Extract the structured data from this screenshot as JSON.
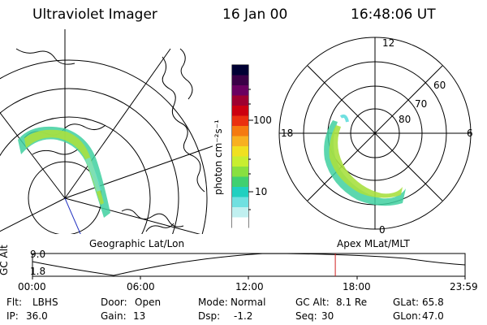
{
  "header": {
    "instrument": "Ultraviolet Imager",
    "date": "16 Jan 00",
    "time": "16:48:06 UT"
  },
  "colorbar": {
    "unit_label": "photon cm⁻²s⁻¹",
    "tick_100": "100",
    "tick_10": "10",
    "colors": [
      "#000033",
      "#3a0046",
      "#6a0060",
      "#9e0030",
      "#cc0010",
      "#ea3010",
      "#f57a10",
      "#f8b020",
      "#f0e020",
      "#c8ee30",
      "#88e040",
      "#40d070",
      "#20d0c0",
      "#70e0e0",
      "#c0f0f0",
      "#ffffff"
    ]
  },
  "geo_panel": {
    "label": "Geographic Lat/Lon"
  },
  "mag_panel": {
    "label": "Apex MLat/MLT",
    "mlt_12": "12",
    "mlt_18": "18",
    "mlt_6": "6",
    "mlt_0": "0",
    "lat_60": "60",
    "lat_70": "70",
    "lat_80": "80"
  },
  "timeline": {
    "axis_label": "GC Alt",
    "y_top": "9.0",
    "y_bottom": "1.8",
    "ticks": [
      "00:00",
      "06:00",
      "12:00",
      "18:00",
      "23:59"
    ],
    "current_time_fraction": 0.7,
    "marker_color": "#d02020"
  },
  "info": {
    "flt_label": "Flt:",
    "flt_value": "LBHS",
    "door_label": "Door:",
    "door_value": "Open",
    "mode_label": "Mode:",
    "mode_value": "Normal",
    "gcalt_label": "GC Alt:",
    "gcalt_value": "8.1 Re",
    "glat_label": "GLat:",
    "glat_value": "65.8",
    "ip_label": "IP:",
    "ip_value": "36.0",
    "gain_label": "Gain:",
    "gain_value": "13",
    "dsp_label": "Dsp:",
    "dsp_value": "-1.2",
    "seq_label": "Seq:",
    "seq_value": "30",
    "glon_label": "GLon:",
    "glon_value": "47.0"
  }
}
